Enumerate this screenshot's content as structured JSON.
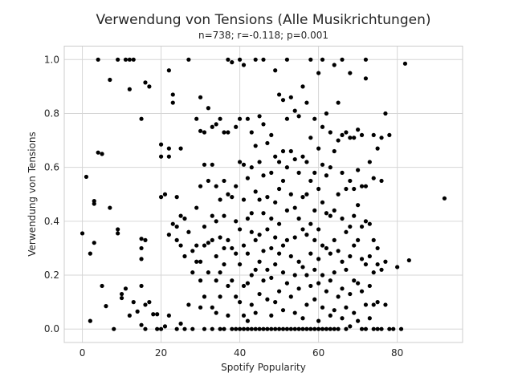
{
  "chart_data": {
    "type": "scatter",
    "title": "Verwendung von Tensions (Alle Musikrichtungen)",
    "subtitle": "n=738; r=-0.118; p=0.001",
    "xlabel": "Spotify Popularity",
    "ylabel": "Verwendung von Tensions",
    "xlim": [
      -4.6,
      96.6
    ],
    "ylim": [
      -0.05,
      1.05
    ],
    "xticks": [
      0,
      20,
      40,
      60,
      80
    ],
    "xtick_labels": [
      "0",
      "20",
      "40",
      "60",
      "80"
    ],
    "yticks": [
      0.0,
      0.2,
      0.4,
      0.6,
      0.8,
      1.0
    ],
    "ytick_labels": [
      "0.0",
      "0.2",
      "0.4",
      "0.6",
      "0.8",
      "1.0"
    ],
    "grid": true,
    "point_color": "#000000",
    "points": [
      [
        0,
        0.355
      ],
      [
        1,
        0.565
      ],
      [
        2,
        0.03
      ],
      [
        2,
        0.28
      ],
      [
        3,
        0.32
      ],
      [
        3,
        0.465
      ],
      [
        3,
        0.475
      ],
      [
        4,
        1.0
      ],
      [
        4,
        0.655
      ],
      [
        5,
        0.65
      ],
      [
        5,
        0.16
      ],
      [
        6,
        0.085
      ],
      [
        7,
        0.925
      ],
      [
        7,
        0.45
      ],
      [
        8,
        0.0
      ],
      [
        9,
        1.0
      ],
      [
        9,
        0.37
      ],
      [
        9,
        0.355
      ],
      [
        10,
        0.13
      ],
      [
        10,
        0.115
      ],
      [
        11,
        1.0
      ],
      [
        11,
        0.15
      ],
      [
        12,
        1.0
      ],
      [
        12,
        0.89
      ],
      [
        12,
        0.05
      ],
      [
        13,
        1.0
      ],
      [
        13,
        0.1
      ],
      [
        14,
        0.065
      ],
      [
        15,
        0.78
      ],
      [
        15,
        0.335
      ],
      [
        15,
        0.3
      ],
      [
        15,
        0.26
      ],
      [
        15,
        0.16
      ],
      [
        15,
        0.015
      ],
      [
        16,
        0.915
      ],
      [
        16,
        0.33
      ],
      [
        16,
        0.09
      ],
      [
        16,
        0.0
      ],
      [
        17,
        0.9
      ],
      [
        17,
        0.1
      ],
      [
        18,
        0.055
      ],
      [
        19,
        0.055
      ],
      [
        19,
        0.0
      ],
      [
        20,
        0.685
      ],
      [
        20,
        0.64
      ],
      [
        20,
        0.49
      ],
      [
        20,
        0.0
      ],
      [
        21,
        0.5
      ],
      [
        21,
        0.01
      ],
      [
        22,
        0.96
      ],
      [
        22,
        0.67
      ],
      [
        22,
        0.64
      ],
      [
        22,
        0.35
      ],
      [
        22,
        0.05
      ],
      [
        23,
        0.87
      ],
      [
        23,
        0.84
      ],
      [
        23,
        0.39
      ],
      [
        24,
        0.49
      ],
      [
        24,
        0.38
      ],
      [
        24,
        0.33
      ],
      [
        24,
        0.0
      ],
      [
        25,
        0.67
      ],
      [
        25,
        0.42
      ],
      [
        25,
        0.31
      ],
      [
        25,
        0.02
      ],
      [
        26,
        0.41
      ],
      [
        26,
        0.27
      ],
      [
        26,
        0.0
      ],
      [
        27,
        1.0
      ],
      [
        27,
        0.36
      ],
      [
        27,
        0.09
      ],
      [
        28,
        0.29
      ],
      [
        28,
        0.21
      ],
      [
        28,
        0.0
      ],
      [
        29,
        0.78
      ],
      [
        29,
        0.45
      ],
      [
        29,
        0.31
      ],
      [
        29,
        0.25
      ],
      [
        30,
        0.86
      ],
      [
        30,
        0.735
      ],
      [
        30,
        0.53
      ],
      [
        30,
        0.25
      ],
      [
        30,
        0.18
      ],
      [
        30,
        0.08
      ],
      [
        31,
        0.73
      ],
      [
        31,
        0.61
      ],
      [
        31,
        0.38
      ],
      [
        31,
        0.31
      ],
      [
        31,
        0.12
      ],
      [
        31,
        0.0
      ],
      [
        32,
        0.82
      ],
      [
        32,
        0.55
      ],
      [
        32,
        0.32
      ],
      [
        32,
        0.21
      ],
      [
        33,
        0.75
      ],
      [
        33,
        0.61
      ],
      [
        33,
        0.42
      ],
      [
        33,
        0.33
      ],
      [
        33,
        0.08
      ],
      [
        33,
        0.0
      ],
      [
        34,
        0.76
      ],
      [
        34,
        0.53
      ],
      [
        34,
        0.4
      ],
      [
        34,
        0.27
      ],
      [
        34,
        0.18
      ],
      [
        34,
        0.06
      ],
      [
        35,
        0.78
      ],
      [
        35,
        0.48
      ],
      [
        35,
        0.34
      ],
      [
        35,
        0.21
      ],
      [
        35,
        0.12
      ],
      [
        35,
        0.0
      ],
      [
        36,
        0.73
      ],
      [
        36,
        0.55
      ],
      [
        36,
        0.42
      ],
      [
        36,
        0.3
      ],
      [
        36,
        0.24
      ],
      [
        36,
        0.0
      ],
      [
        37,
        1.0
      ],
      [
        37,
        0.73
      ],
      [
        37,
        0.5
      ],
      [
        37,
        0.33
      ],
      [
        37,
        0.16
      ],
      [
        37,
        0.05
      ],
      [
        38,
        0.99
      ],
      [
        38,
        0.49
      ],
      [
        38,
        0.3
      ],
      [
        38,
        0.18
      ],
      [
        38,
        0.0
      ],
      [
        39,
        0.75
      ],
      [
        39,
        0.53
      ],
      [
        39,
        0.4
      ],
      [
        39,
        0.28
      ],
      [
        39,
        0.12
      ],
      [
        39,
        0.0
      ],
      [
        40,
        1.0
      ],
      [
        40,
        0.78
      ],
      [
        40,
        0.62
      ],
      [
        40,
        0.37
      ],
      [
        40,
        0.24
      ],
      [
        40,
        0.1
      ],
      [
        40,
        0.0
      ],
      [
        41,
        0.98
      ],
      [
        41,
        0.61
      ],
      [
        41,
        0.48
      ],
      [
        41,
        0.31
      ],
      [
        41,
        0.16
      ],
      [
        41,
        0.05
      ],
      [
        41,
        0.0
      ],
      [
        42,
        0.78
      ],
      [
        42,
        0.56
      ],
      [
        42,
        0.41
      ],
      [
        42,
        0.28
      ],
      [
        42,
        0.17
      ],
      [
        42,
        0.03
      ],
      [
        42,
        0.0
      ],
      [
        43,
        0.73
      ],
      [
        43,
        0.6
      ],
      [
        43,
        0.43
      ],
      [
        43,
        0.36
      ],
      [
        43,
        0.2
      ],
      [
        43,
        0.09
      ],
      [
        43,
        0.0
      ],
      [
        44,
        1.0
      ],
      [
        44,
        0.68
      ],
      [
        44,
        0.51
      ],
      [
        44,
        0.33
      ],
      [
        44,
        0.22
      ],
      [
        44,
        0.06
      ],
      [
        44,
        0.0
      ],
      [
        45,
        0.79
      ],
      [
        45,
        0.62
      ],
      [
        45,
        0.48
      ],
      [
        45,
        0.35
      ],
      [
        45,
        0.25
      ],
      [
        45,
        0.13
      ],
      [
        45,
        0.0
      ],
      [
        46,
        1.0
      ],
      [
        46,
        0.76
      ],
      [
        46,
        0.57
      ],
      [
        46,
        0.43
      ],
      [
        46,
        0.29
      ],
      [
        46,
        0.18
      ],
      [
        46,
        0.0
      ],
      [
        47,
        0.69
      ],
      [
        47,
        0.49
      ],
      [
        47,
        0.37
      ],
      [
        47,
        0.22
      ],
      [
        47,
        0.11
      ],
      [
        47,
        0.0
      ],
      [
        48,
        0.72
      ],
      [
        48,
        0.58
      ],
      [
        48,
        0.41
      ],
      [
        48,
        0.3
      ],
      [
        48,
        0.19
      ],
      [
        48,
        0.05
      ],
      [
        48,
        0.0
      ],
      [
        49,
        0.96
      ],
      [
        49,
        0.64
      ],
      [
        49,
        0.47
      ],
      [
        49,
        0.34
      ],
      [
        49,
        0.24
      ],
      [
        49,
        0.1
      ],
      [
        49,
        0.0
      ],
      [
        50,
        0.87
      ],
      [
        50,
        0.62
      ],
      [
        50,
        0.52
      ],
      [
        50,
        0.39
      ],
      [
        50,
        0.28
      ],
      [
        50,
        0.14
      ],
      [
        50,
        0.0
      ],
      [
        51,
        0.85
      ],
      [
        51,
        0.66
      ],
      [
        51,
        0.55
      ],
      [
        51,
        0.31
      ],
      [
        51,
        0.21
      ],
      [
        51,
        0.07
      ],
      [
        51,
        0.0
      ],
      [
        52,
        1.0
      ],
      [
        52,
        0.78
      ],
      [
        52,
        0.6
      ],
      [
        52,
        0.44
      ],
      [
        52,
        0.33
      ],
      [
        52,
        0.17
      ],
      [
        52,
        0.0
      ],
      [
        53,
        0.86
      ],
      [
        53,
        0.66
      ],
      [
        53,
        0.5
      ],
      [
        53,
        0.27
      ],
      [
        53,
        0.12
      ],
      [
        53,
        0.0
      ],
      [
        54,
        0.81
      ],
      [
        54,
        0.63
      ],
      [
        54,
        0.45
      ],
      [
        54,
        0.34
      ],
      [
        54,
        0.2
      ],
      [
        54,
        0.06
      ],
      [
        54,
        0.0
      ],
      [
        55,
        0.79
      ],
      [
        55,
        0.58
      ],
      [
        55,
        0.41
      ],
      [
        55,
        0.25
      ],
      [
        55,
        0.15
      ],
      [
        55,
        0.0
      ],
      [
        56,
        0.9
      ],
      [
        56,
        0.64
      ],
      [
        56,
        0.49
      ],
      [
        56,
        0.37
      ],
      [
        56,
        0.23
      ],
      [
        56,
        0.04
      ],
      [
        56,
        0.0
      ],
      [
        57,
        0.84
      ],
      [
        57,
        0.62
      ],
      [
        57,
        0.5
      ],
      [
        57,
        0.35
      ],
      [
        57,
        0.2
      ],
      [
        57,
        0.09
      ],
      [
        57,
        0.0
      ],
      [
        58,
        1.0
      ],
      [
        58,
        0.71
      ],
      [
        58,
        0.55
      ],
      [
        58,
        0.39
      ],
      [
        58,
        0.28
      ],
      [
        58,
        0.16
      ],
      [
        58,
        0.0
      ],
      [
        59,
        0.78
      ],
      [
        59,
        0.58
      ],
      [
        59,
        0.44
      ],
      [
        59,
        0.33
      ],
      [
        59,
        0.22
      ],
      [
        59,
        0.11
      ],
      [
        59,
        0.0
      ],
      [
        60,
        0.95
      ],
      [
        60,
        0.67
      ],
      [
        60,
        0.52
      ],
      [
        60,
        0.37
      ],
      [
        60,
        0.26
      ],
      [
        60,
        0.17
      ],
      [
        60,
        0.03
      ],
      [
        60,
        0.0
      ],
      [
        61,
        1.0
      ],
      [
        61,
        0.75
      ],
      [
        61,
        0.61
      ],
      [
        61,
        0.47
      ],
      [
        61,
        0.31
      ],
      [
        61,
        0.2
      ],
      [
        61,
        0.08
      ],
      [
        61,
        0.0
      ],
      [
        62,
        0.8
      ],
      [
        62,
        0.57
      ],
      [
        62,
        0.43
      ],
      [
        62,
        0.3
      ],
      [
        62,
        0.14
      ],
      [
        62,
        0.0
      ],
      [
        63,
        0.73
      ],
      [
        63,
        0.6
      ],
      [
        63,
        0.42
      ],
      [
        63,
        0.28
      ],
      [
        63,
        0.18
      ],
      [
        63,
        0.05
      ],
      [
        63,
        0.0
      ],
      [
        64,
        0.98
      ],
      [
        64,
        0.66
      ],
      [
        64,
        0.44
      ],
      [
        64,
        0.33
      ],
      [
        64,
        0.21
      ],
      [
        64,
        0.07
      ],
      [
        64,
        0.0
      ],
      [
        65,
        0.84
      ],
      [
        65,
        0.7
      ],
      [
        65,
        0.5
      ],
      [
        65,
        0.29
      ],
      [
        65,
        0.12
      ],
      [
        65,
        0.0
      ],
      [
        66,
        1.0
      ],
      [
        66,
        0.72
      ],
      [
        66,
        0.58
      ],
      [
        66,
        0.41
      ],
      [
        66,
        0.25
      ],
      [
        66,
        0.15
      ],
      [
        66,
        0.04
      ],
      [
        67,
        0.73
      ],
      [
        67,
        0.52
      ],
      [
        67,
        0.36
      ],
      [
        67,
        0.22
      ],
      [
        67,
        0.08
      ],
      [
        67,
        0.0
      ],
      [
        68,
        0.95
      ],
      [
        68,
        0.71
      ],
      [
        68,
        0.55
      ],
      [
        68,
        0.38
      ],
      [
        68,
        0.27
      ],
      [
        68,
        0.13
      ],
      [
        68,
        0.01
      ],
      [
        69,
        0.71
      ],
      [
        69,
        0.52
      ],
      [
        69,
        0.42
      ],
      [
        69,
        0.31
      ],
      [
        69,
        0.18
      ],
      [
        69,
        0.06
      ],
      [
        70,
        0.74
      ],
      [
        70,
        0.59
      ],
      [
        70,
        0.46
      ],
      [
        70,
        0.33
      ],
      [
        70,
        0.17
      ],
      [
        70,
        0.03
      ],
      [
        71,
        0.72
      ],
      [
        71,
        0.53
      ],
      [
        71,
        0.38
      ],
      [
        71,
        0.26
      ],
      [
        71,
        0.14
      ],
      [
        71,
        0.0
      ],
      [
        72,
        1.0
      ],
      [
        72,
        0.93
      ],
      [
        72,
        0.53
      ],
      [
        72,
        0.4
      ],
      [
        72,
        0.24
      ],
      [
        72,
        0.09
      ],
      [
        72,
        0.0
      ],
      [
        73,
        0.62
      ],
      [
        73,
        0.39
      ],
      [
        73,
        0.27
      ],
      [
        73,
        0.16
      ],
      [
        73,
        0.04
      ],
      [
        74,
        0.72
      ],
      [
        74,
        0.56
      ],
      [
        74,
        0.33
      ],
      [
        74,
        0.21
      ],
      [
        74,
        0.09
      ],
      [
        74,
        0.0
      ],
      [
        75,
        0.67
      ],
      [
        75,
        0.3
      ],
      [
        75,
        0.24
      ],
      [
        75,
        0.1
      ],
      [
        75,
        0.0
      ],
      [
        76,
        0.71
      ],
      [
        76,
        0.55
      ],
      [
        76,
        0.22
      ],
      [
        76,
        0.0
      ],
      [
        77,
        0.8
      ],
      [
        77,
        0.25
      ],
      [
        77,
        0.09
      ],
      [
        78,
        0.72
      ],
      [
        78,
        0.0
      ],
      [
        79,
        0.0
      ],
      [
        80,
        0.23
      ],
      [
        81,
        0.0
      ],
      [
        82,
        0.985
      ],
      [
        83,
        0.255
      ],
      [
        92,
        0.485
      ]
    ]
  }
}
